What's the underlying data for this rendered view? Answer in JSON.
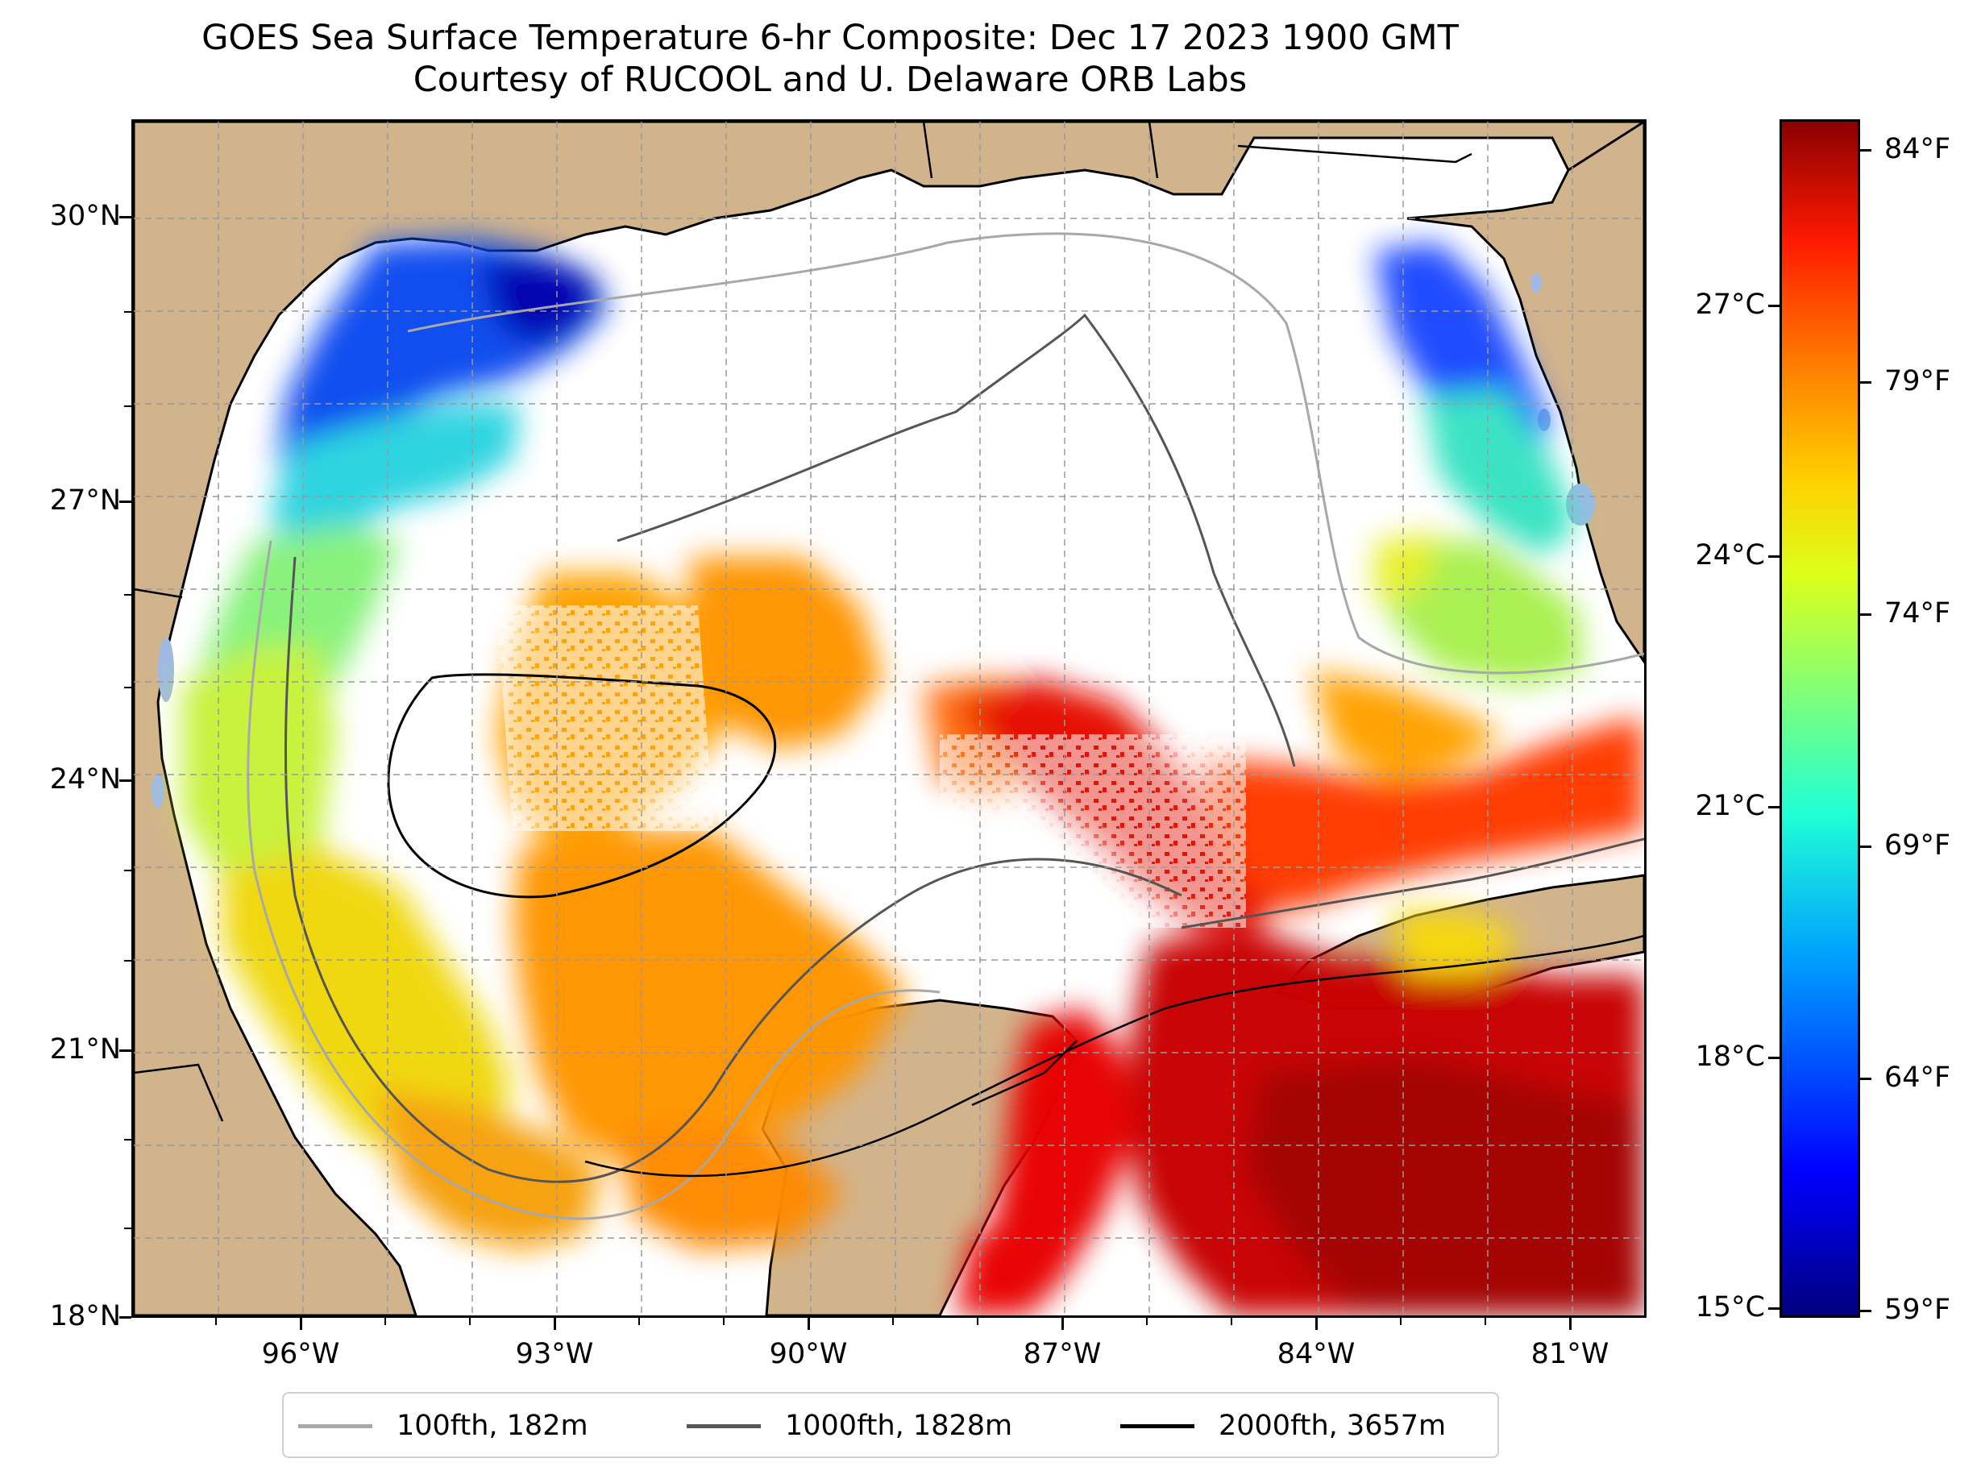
{
  "title_line1": "GOES Sea Surface Temperature 6-hr Composite: Dec 17 2023 1900 GMT",
  "title_line2": "Courtesy of RUCOOL and U. Delaware ORB Labs",
  "map": {
    "lat_ticks": [
      "30°N",
      "27°N",
      "24°N",
      "21°N",
      "18°N"
    ],
    "lon_ticks": [
      "96°W",
      "93°W",
      "90°W",
      "87°W",
      "84°W",
      "81°W"
    ],
    "colors": {
      "land": "#d2b48c",
      "no_data": "#ffffff",
      "lakes": "#9fb9e3"
    }
  },
  "colorbar": {
    "colormap": "jet",
    "celsius_labels": [
      "27°C",
      "24°C",
      "21°C",
      "18°C",
      "15°C"
    ],
    "fahrenheit_labels": [
      "84°F",
      "79°F",
      "74°F",
      "69°F",
      "64°F",
      "59°F"
    ]
  },
  "legend": [
    {
      "label": "100fth, 182m",
      "color": "#a8a8a8"
    },
    {
      "label": "1000fth, 1828m",
      "color": "#555555"
    },
    {
      "label": "2000fth, 3657m",
      "color": "#000000"
    }
  ]
}
